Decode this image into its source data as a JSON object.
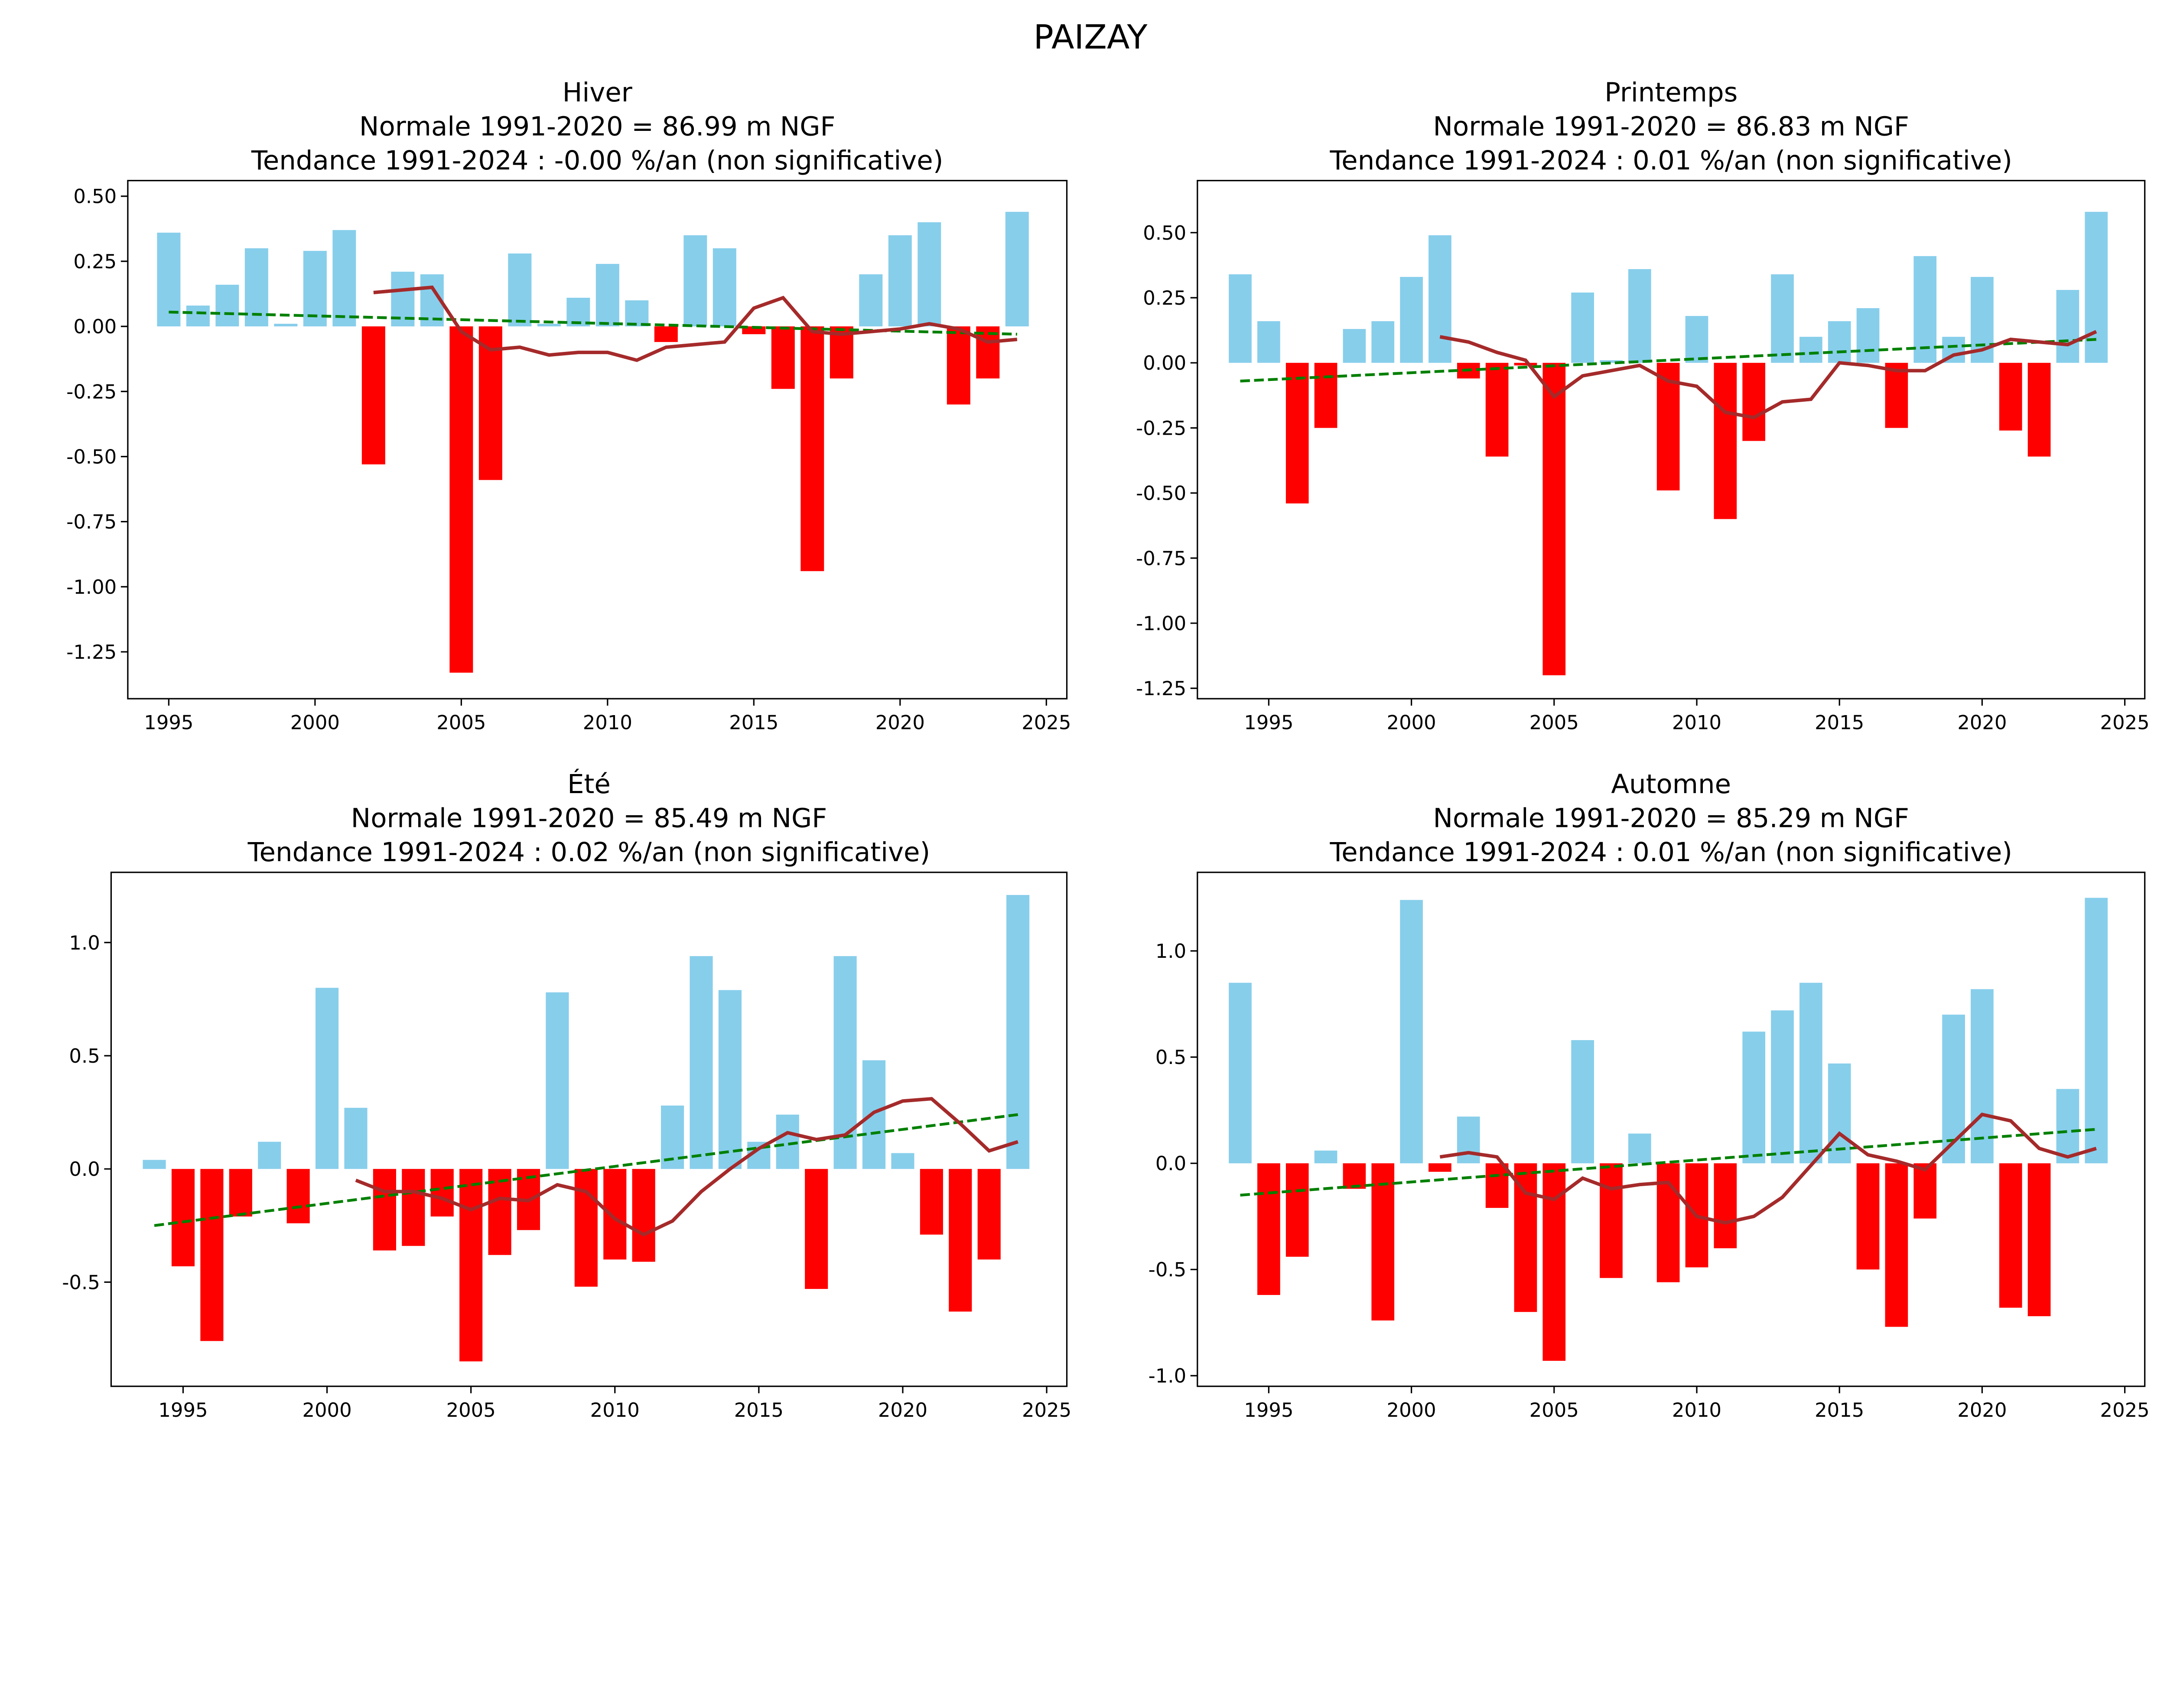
{
  "suptitle": "PAIZAY",
  "colors": {
    "positive": "#87CEEB",
    "negative": "#FF0000",
    "moving_average": "#A52A2A",
    "trend": "#008000"
  },
  "chart_data": [
    {
      "type": "bar",
      "title_lines": [
        "Hiver",
        "Normale 1991-2020 = 86.99 m NGF",
        "Tendance 1991-2024 : -0.00 %/an (non significative)"
      ],
      "xlim": [
        1993.6,
        2025.7
      ],
      "ylim": [
        -1.43,
        0.56
      ],
      "xticks": [
        1995,
        2000,
        2005,
        2010,
        2015,
        2020,
        2025
      ],
      "yticks": [
        0.5,
        0.25,
        0,
        -0.25,
        -0.5,
        -0.75,
        -1.0,
        -1.25
      ],
      "ytick_decimals": 2,
      "years": [
        1995,
        1996,
        1997,
        1998,
        1999,
        2000,
        2001,
        2002,
        2003,
        2004,
        2005,
        2006,
        2007,
        2008,
        2009,
        2010,
        2011,
        2012,
        2013,
        2014,
        2015,
        2016,
        2017,
        2018,
        2019,
        2020,
        2021,
        2022,
        2023,
        2024
      ],
      "values": [
        0.36,
        0.08,
        0.16,
        0.3,
        0.01,
        0.29,
        0.37,
        -0.53,
        0.21,
        0.2,
        -1.33,
        -0.59,
        0.28,
        0.01,
        0.11,
        0.24,
        0.1,
        -0.06,
        0.35,
        0.3,
        -0.03,
        -0.24,
        -0.94,
        -0.2,
        0.2,
        0.35,
        0.4,
        -0.3,
        -0.2,
        0.44
      ],
      "moving_average": {
        "years": [
          2002,
          2003,
          2004,
          2005,
          2006,
          2007,
          2008,
          2009,
          2010,
          2011,
          2012,
          2013,
          2014,
          2015,
          2016,
          2017,
          2018,
          2019,
          2020,
          2021,
          2022,
          2023,
          2024
        ],
        "values": [
          0.13,
          0.14,
          0.15,
          -0.02,
          -0.09,
          -0.08,
          -0.11,
          -0.1,
          -0.1,
          -0.13,
          -0.08,
          -0.07,
          -0.06,
          0.07,
          0.11,
          -0.02,
          -0.03,
          -0.02,
          -0.01,
          0.01,
          -0.01,
          -0.06,
          -0.05
        ]
      },
      "trend": {
        "x": [
          1995,
          2024
        ],
        "y": [
          0.055,
          -0.03
        ]
      }
    },
    {
      "type": "bar",
      "title_lines": [
        "Printemps",
        "Normale 1991-2020 = 86.83 m NGF",
        "Tendance 1991-2024 : 0.01 %/an (non significative)"
      ],
      "xlim": [
        1992.5,
        2025.7
      ],
      "ylim": [
        -1.29,
        0.7
      ],
      "xticks": [
        1995,
        2000,
        2005,
        2010,
        2015,
        2020,
        2025
      ],
      "yticks": [
        0.5,
        0.25,
        0,
        -0.25,
        -0.5,
        -0.75,
        -1.0,
        -1.25
      ],
      "ytick_decimals": 2,
      "years": [
        1994,
        1995,
        1996,
        1997,
        1998,
        1999,
        2000,
        2001,
        2002,
        2003,
        2004,
        2005,
        2006,
        2007,
        2008,
        2009,
        2010,
        2011,
        2012,
        2013,
        2014,
        2015,
        2016,
        2017,
        2018,
        2019,
        2020,
        2021,
        2022,
        2023,
        2024
      ],
      "values": [
        0.34,
        0.16,
        -0.54,
        -0.25,
        0.13,
        0.16,
        0.33,
        0.49,
        -0.06,
        -0.36,
        -0.01,
        -1.2,
        0.27,
        0.01,
        0.36,
        -0.49,
        0.18,
        -0.6,
        -0.3,
        0.34,
        0.1,
        0.16,
        0.21,
        -0.25,
        0.41,
        0.1,
        0.33,
        -0.26,
        -0.36,
        0.28,
        0.58
      ],
      "moving_average": {
        "years": [
          2001,
          2002,
          2003,
          2004,
          2005,
          2006,
          2007,
          2008,
          2009,
          2010,
          2011,
          2012,
          2013,
          2014,
          2015,
          2016,
          2017,
          2018,
          2019,
          2020,
          2021,
          2022,
          2023,
          2024
        ],
        "values": [
          0.1,
          0.08,
          0.04,
          0.01,
          -0.13,
          -0.05,
          -0.03,
          -0.01,
          -0.07,
          -0.09,
          -0.19,
          -0.21,
          -0.15,
          -0.14,
          0.0,
          -0.01,
          -0.03,
          -0.03,
          0.03,
          0.05,
          0.09,
          0.08,
          0.07,
          0.12
        ]
      },
      "trend": {
        "x": [
          1994,
          2024
        ],
        "y": [
          -0.07,
          0.09
        ]
      }
    },
    {
      "type": "bar",
      "title_lines": [
        "Été",
        "Normale 1991-2020 = 85.49 m NGF",
        "Tendance 1991-2024 : 0.02 %/an (non significative)"
      ],
      "xlim": [
        1992.5,
        2025.7
      ],
      "ylim": [
        -0.96,
        1.31
      ],
      "xticks": [
        1995,
        2000,
        2005,
        2010,
        2015,
        2020,
        2025
      ],
      "yticks": [
        1.0,
        0.5,
        0,
        -0.5
      ],
      "ytick_decimals": 1,
      "years": [
        1994,
        1995,
        1996,
        1997,
        1998,
        1999,
        2000,
        2001,
        2002,
        2003,
        2004,
        2005,
        2006,
        2007,
        2008,
        2009,
        2010,
        2011,
        2012,
        2013,
        2014,
        2015,
        2016,
        2017,
        2018,
        2019,
        2020,
        2021,
        2022,
        2023,
        2024
      ],
      "values": [
        0.04,
        -0.43,
        -0.76,
        -0.21,
        0.12,
        -0.24,
        0.8,
        0.27,
        -0.36,
        -0.34,
        -0.21,
        -0.85,
        -0.38,
        -0.27,
        0.78,
        -0.52,
        -0.4,
        -0.41,
        0.28,
        0.94,
        0.79,
        0.12,
        0.24,
        -0.53,
        0.94,
        0.48,
        0.07,
        -0.29,
        -0.63,
        -0.4,
        1.21
      ],
      "moving_average": {
        "years": [
          2001,
          2002,
          2003,
          2004,
          2005,
          2006,
          2007,
          2008,
          2009,
          2010,
          2011,
          2012,
          2013,
          2014,
          2015,
          2016,
          2017,
          2018,
          2019,
          2020,
          2021,
          2022,
          2023,
          2024
        ],
        "values": [
          -0.05,
          -0.1,
          -0.1,
          -0.13,
          -0.18,
          -0.13,
          -0.14,
          -0.07,
          -0.1,
          -0.22,
          -0.29,
          -0.23,
          -0.1,
          0.0,
          0.09,
          0.16,
          0.13,
          0.15,
          0.25,
          0.3,
          0.31,
          0.2,
          0.08,
          0.12
        ]
      },
      "trend": {
        "x": [
          1994,
          2024
        ],
        "y": [
          -0.25,
          0.24
        ]
      }
    },
    {
      "type": "bar",
      "title_lines": [
        "Automne",
        "Normale 1991-2020 = 85.29 m NGF",
        "Tendance 1991-2024 : 0.01 %/an (non significative)"
      ],
      "xlim": [
        1992.5,
        2025.7
      ],
      "ylim": [
        -1.05,
        1.37
      ],
      "xticks": [
        1995,
        2000,
        2005,
        2010,
        2015,
        2020,
        2025
      ],
      "yticks": [
        1.0,
        0.5,
        0,
        -0.5,
        -1.0
      ],
      "ytick_decimals": 1,
      "years": [
        1994,
        1995,
        1996,
        1997,
        1998,
        1999,
        2000,
        2001,
        2002,
        2003,
        2004,
        2005,
        2006,
        2007,
        2008,
        2009,
        2010,
        2011,
        2012,
        2013,
        2014,
        2015,
        2016,
        2017,
        2018,
        2019,
        2020,
        2021,
        2022,
        2023,
        2024
      ],
      "values": [
        0.85,
        -0.62,
        -0.44,
        0.06,
        -0.12,
        -0.74,
        1.24,
        -0.04,
        0.22,
        -0.21,
        -0.7,
        -0.93,
        0.58,
        -0.54,
        0.14,
        -0.56,
        -0.49,
        -0.4,
        0.62,
        0.72,
        0.85,
        0.47,
        -0.5,
        -0.77,
        -0.26,
        0.7,
        0.82,
        -0.68,
        -0.72,
        0.35,
        1.25
      ],
      "moving_average": {
        "years": [
          2001,
          2002,
          2003,
          2004,
          2005,
          2006,
          2007,
          2008,
          2009,
          2010,
          2011,
          2012,
          2013,
          2014,
          2015,
          2016,
          2017,
          2018,
          2019,
          2020,
          2021,
          2022,
          2023,
          2024
        ],
        "values": [
          0.03,
          0.05,
          0.03,
          -0.14,
          -0.17,
          -0.07,
          -0.12,
          -0.1,
          -0.09,
          -0.25,
          -0.28,
          -0.25,
          -0.16,
          -0.01,
          0.14,
          0.04,
          0.01,
          -0.03,
          0.1,
          0.23,
          0.2,
          0.07,
          0.03,
          0.07
        ]
      },
      "trend": {
        "x": [
          1994,
          2024
        ],
        "y": [
          -0.15,
          0.16
        ]
      }
    }
  ]
}
